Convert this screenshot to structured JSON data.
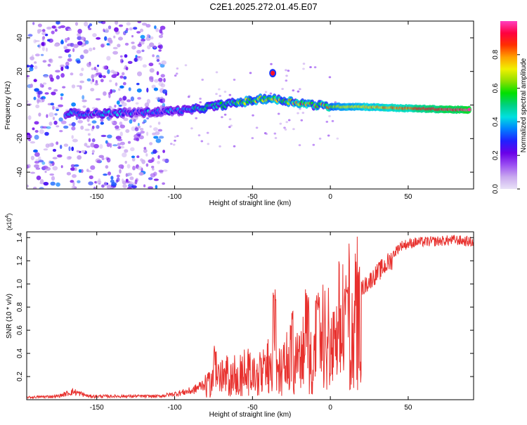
{
  "title": "C2E1.2025.272.01.45.E07",
  "chart_data": [
    {
      "type": "heatmap",
      "xlabel": "Height of straight line (km)",
      "ylabel": "Frequency (Hz)",
      "xlim": [
        -195,
        92
      ],
      "ylim": [
        -50,
        50
      ],
      "x_ticks": [
        -150,
        -100,
        -50,
        0,
        50
      ],
      "y_ticks": [
        -40,
        -20,
        0,
        20,
        40
      ],
      "colorbar": {
        "label": "Normalized spectral amplitude",
        "range": [
          0,
          1
        ],
        "ticks": [
          0.0,
          0.2,
          0.4,
          0.6,
          0.8
        ],
        "tick_labels": [
          "0.0",
          "0.2",
          "0.4",
          "0.6",
          "0.8"
        ],
        "colors": [
          "#e9e2f7",
          "#c9a9ef",
          "#9b4ff2",
          "#6a00e8",
          "#2020ff",
          "#0080ff",
          "#00e0e0",
          "#00d080",
          "#00e000",
          "#90e000",
          "#f0f000",
          "#ffa000",
          "#ff3000",
          "#ff0040",
          "#ff40c0"
        ]
      },
      "band_centerline": [
        {
          "x": -170,
          "y": -5
        },
        {
          "x": -140,
          "y": -5
        },
        {
          "x": -110,
          "y": -4
        },
        {
          "x": -90,
          "y": -3
        },
        {
          "x": -70,
          "y": 0
        },
        {
          "x": -55,
          "y": 2
        },
        {
          "x": -40,
          "y": 4
        },
        {
          "x": -25,
          "y": 2
        },
        {
          "x": -10,
          "y": 0
        },
        {
          "x": 0,
          "y": -1
        },
        {
          "x": 20,
          "y": -1
        },
        {
          "x": 50,
          "y": -2
        },
        {
          "x": 90,
          "y": -3
        }
      ],
      "noise_region_xlim": [
        -195,
        -105
      ],
      "feature": {
        "x": -37,
        "y": 19,
        "value": 0.9
      }
    },
    {
      "type": "line",
      "xlabel": "Height of straight line (km)",
      "ylabel": "SNR (10 * v/v)",
      "y_multiplier": "(x10",
      "y_multiplier_exp": "4",
      "y_multiplier_close": ")",
      "xlim": [
        -195,
        92
      ],
      "ylim": [
        0,
        1.45
      ],
      "x_ticks": [
        -150,
        -100,
        -50,
        0,
        50
      ],
      "y_ticks": [
        0.2,
        0.4,
        0.6,
        0.8,
        1.0,
        1.2,
        1.4
      ],
      "y_tick_labels": [
        "0.2",
        "0.4",
        "0.6",
        "0.8",
        "1.0",
        "1.2",
        "1.4"
      ],
      "color": "#e8312e",
      "envelope": [
        {
          "x": -195,
          "y": 0.02
        },
        {
          "x": -175,
          "y": 0.03
        },
        {
          "x": -165,
          "y": 0.07
        },
        {
          "x": -155,
          "y": 0.03
        },
        {
          "x": -110,
          "y": 0.03
        },
        {
          "x": -100,
          "y": 0.05
        },
        {
          "x": -88,
          "y": 0.08
        },
        {
          "x": -80,
          "y": 0.15
        },
        {
          "x": -74,
          "y": 0.3
        },
        {
          "x": -60,
          "y": 0.25
        },
        {
          "x": -45,
          "y": 0.3
        },
        {
          "x": -36,
          "y": 0.35
        },
        {
          "x": -30,
          "y": 0.4
        },
        {
          "x": -20,
          "y": 0.48
        },
        {
          "x": -10,
          "y": 0.55
        },
        {
          "x": 0,
          "y": 0.62
        },
        {
          "x": 10,
          "y": 0.8
        },
        {
          "x": 20,
          "y": 0.98
        },
        {
          "x": 30,
          "y": 1.12
        },
        {
          "x": 40,
          "y": 1.25
        },
        {
          "x": 45,
          "y": 1.33
        },
        {
          "x": 55,
          "y": 1.36
        },
        {
          "x": 70,
          "y": 1.37
        },
        {
          "x": 80,
          "y": 1.38
        },
        {
          "x": 92,
          "y": 1.36
        }
      ],
      "spikes": [
        {
          "x": -74,
          "y": 0.47
        },
        {
          "x": -52,
          "y": 0.42
        },
        {
          "x": -36,
          "y": 0.98
        },
        {
          "x": -25,
          "y": 0.88
        },
        {
          "x": -15,
          "y": 0.96
        },
        {
          "x": -8,
          "y": 0.9
        },
        {
          "x": 10,
          "y": 0.95
        }
      ]
    }
  ]
}
